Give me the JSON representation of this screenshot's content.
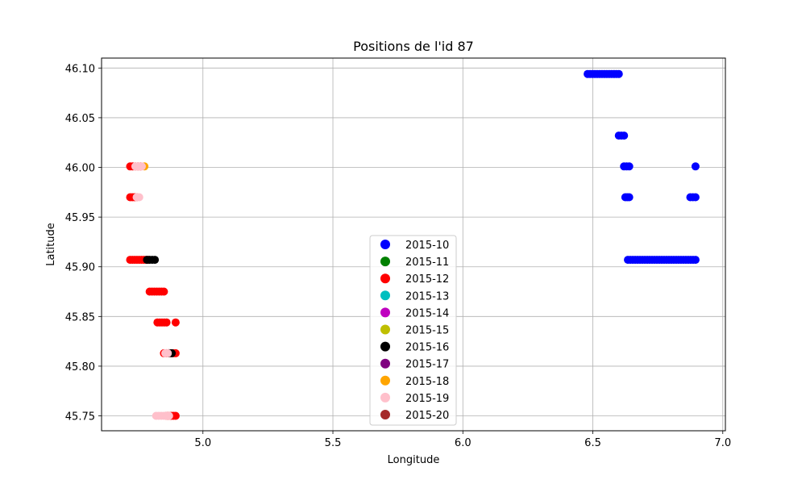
{
  "chart_data": {
    "type": "scatter",
    "title": "Positions de l'id 87",
    "xlabel": "Longitude",
    "ylabel": "Latitude",
    "xlim": [
      4.61,
      7.01
    ],
    "ylim": [
      45.735,
      46.11
    ],
    "xticks": [
      "5.0",
      "5.5",
      "6.0",
      "6.5",
      "7.0"
    ],
    "yticks": [
      "45.75",
      "45.80",
      "45.85",
      "45.90",
      "45.95",
      "46.00",
      "46.05",
      "46.10"
    ],
    "grid": true,
    "legend_position": "lower center",
    "series": [
      {
        "name": "2015-10",
        "color": "#0000ff",
        "segments": [
          {
            "lat": 46.094,
            "lon_from": 6.48,
            "lon_to": 6.6
          },
          {
            "lat": 46.032,
            "lon_from": 6.6,
            "lon_to": 6.62
          },
          {
            "lat": 46.001,
            "lon_from": 6.62,
            "lon_to": 6.64
          },
          {
            "lat": 46.001,
            "lon_from": 6.895,
            "lon_to": 6.895
          },
          {
            "lat": 45.97,
            "lon_from": 6.625,
            "lon_to": 6.64
          },
          {
            "lat": 45.97,
            "lon_from": 6.875,
            "lon_to": 6.895
          },
          {
            "lat": 45.907,
            "lon_from": 6.635,
            "lon_to": 6.895
          }
        ]
      },
      {
        "name": "2015-11",
        "color": "#008000",
        "segments": []
      },
      {
        "name": "2015-12",
        "color": "#ff0000",
        "segments": [
          {
            "lat": 46.001,
            "lon_from": 4.72,
            "lon_to": 4.76
          },
          {
            "lat": 45.97,
            "lon_from": 4.72,
            "lon_to": 4.745
          },
          {
            "lat": 45.907,
            "lon_from": 4.72,
            "lon_to": 4.79
          },
          {
            "lat": 45.875,
            "lon_from": 4.795,
            "lon_to": 4.85
          },
          {
            "lat": 45.844,
            "lon_from": 4.825,
            "lon_to": 4.86
          },
          {
            "lat": 45.844,
            "lon_from": 4.895,
            "lon_to": 4.895
          },
          {
            "lat": 45.813,
            "lon_from": 4.85,
            "lon_to": 4.895
          },
          {
            "lat": 45.75,
            "lon_from": 4.86,
            "lon_to": 4.895
          }
        ]
      },
      {
        "name": "2015-13",
        "color": "#00bfbf",
        "segments": []
      },
      {
        "name": "2015-14",
        "color": "#bf00bf",
        "segments": []
      },
      {
        "name": "2015-15",
        "color": "#bfbf00",
        "segments": []
      },
      {
        "name": "2015-16",
        "color": "#000000",
        "segments": [
          {
            "lat": 45.907,
            "lon_from": 4.785,
            "lon_to": 4.815
          },
          {
            "lat": 45.813,
            "lon_from": 4.87,
            "lon_to": 4.88
          }
        ]
      },
      {
        "name": "2015-17",
        "color": "#800080",
        "segments": []
      },
      {
        "name": "2015-18",
        "color": "#ffa500",
        "segments": [
          {
            "lat": 46.001,
            "lon_from": 4.775,
            "lon_to": 4.775
          }
        ]
      },
      {
        "name": "2015-19",
        "color": "#ffc0cb",
        "segments": [
          {
            "lat": 46.001,
            "lon_from": 4.74,
            "lon_to": 4.765
          },
          {
            "lat": 45.97,
            "lon_from": 4.745,
            "lon_to": 4.755
          },
          {
            "lat": 45.813,
            "lon_from": 4.855,
            "lon_to": 4.865
          },
          {
            "lat": 45.75,
            "lon_from": 4.82,
            "lon_to": 4.87
          }
        ]
      },
      {
        "name": "2015-20",
        "color": "#a52a2a",
        "segments": []
      }
    ]
  }
}
